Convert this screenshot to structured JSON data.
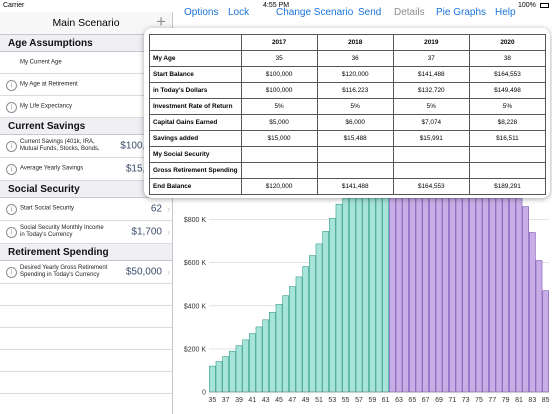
{
  "status": {
    "carrier": "Carrier",
    "time": "4:55 PM",
    "battery": "100%"
  },
  "sidebar": {
    "title": "Main Scenario",
    "add_label": "+",
    "sections": [
      {
        "title": "Age Assumptions",
        "rows": [
          {
            "label": "My Current Age",
            "value": "35",
            "info": false
          },
          {
            "label": "My Age at Retirement",
            "value": "62",
            "info": true
          },
          {
            "label": "My Life Expectancy",
            "value": "85",
            "info": true
          }
        ]
      },
      {
        "title": "Current Savings",
        "rows": [
          {
            "label": "Current Savings (401k, IRA, Mutual Funds, Stocks, Bonds,",
            "value": "$100,000",
            "info": true
          },
          {
            "label": "Average Yearly Savings",
            "value": "$15,000",
            "info": true
          }
        ]
      },
      {
        "title": "Social Security",
        "rows": [
          {
            "label": "Start Social Security",
            "value": "62",
            "info": true
          },
          {
            "label": "Social Security Monthly Income in Today's Currency",
            "value": "$1,700",
            "info": true
          }
        ]
      },
      {
        "title": "Retirement Spending",
        "rows": [
          {
            "label": "Desired Yearly Gross Retirement Spending in Today's Currency",
            "value": "$50,000",
            "info": true
          }
        ]
      }
    ]
  },
  "nav": {
    "options": "Options",
    "lock": "Lock",
    "change_scenario": "Change Scenario",
    "send": "Send",
    "details": "Details",
    "pie_graphs": "Pie Graphs",
    "help": "Help"
  },
  "table": {
    "years": [
      "2017",
      "2018",
      "2019",
      "2020"
    ],
    "rows": [
      {
        "label": "My Age",
        "values": [
          "35",
          "36",
          "37",
          "38"
        ]
      },
      {
        "label": "Start Balance",
        "values": [
          "$100,000",
          "$120,000",
          "$141,488",
          "$164,553"
        ]
      },
      {
        "label": "in Today's Dollars",
        "values": [
          "$100,000",
          "$116,223",
          "$132,720",
          "$149,498"
        ]
      },
      {
        "label": "Investment Rate of Return",
        "values": [
          "5%",
          "5%",
          "5%",
          "5%"
        ]
      },
      {
        "label": "Capital Gains Earned",
        "values": [
          "$5,000",
          "$6,000",
          "$7,074",
          "$8,228"
        ]
      },
      {
        "label": "Savings added",
        "values": [
          "$15,000",
          "$15,488",
          "$15,991",
          "$16,511"
        ]
      },
      {
        "label": "My Social Security",
        "values": [
          "",
          "",
          "",
          ""
        ]
      },
      {
        "label": "Gross Retirement Spending",
        "values": [
          "",
          "",
          "",
          ""
        ]
      },
      {
        "label": "End Balance",
        "values": [
          "$120,000",
          "$141,488",
          "$164,553",
          "$189,291"
        ]
      }
    ]
  },
  "chart_data": {
    "type": "bar",
    "x_tick_labels": [
      "35",
      "37",
      "39",
      "41",
      "43",
      "45",
      "47",
      "49",
      "51",
      "53",
      "55",
      "57",
      "59",
      "61",
      "63",
      "65",
      "67",
      "69",
      "71",
      "73",
      "75",
      "77",
      "79",
      "81",
      "83",
      "85"
    ],
    "y_tick_labels": [
      "0",
      "$200 K",
      "$400 K",
      "$600 K",
      "$800 K"
    ],
    "ylim": [
      0,
      900000
    ],
    "x": [
      35,
      36,
      37,
      38,
      39,
      40,
      41,
      42,
      43,
      44,
      45,
      46,
      47,
      48,
      49,
      50,
      51,
      52,
      53,
      54,
      55,
      56,
      57,
      58,
      59,
      60,
      61,
      62,
      63,
      64,
      65,
      66,
      67,
      68,
      69,
      70,
      71,
      72,
      73,
      74,
      75,
      76,
      77,
      78,
      79,
      80,
      81,
      82,
      83,
      84,
      85
    ],
    "values": [
      120000,
      141488,
      164553,
      189291,
      215000,
      242000,
      271000,
      302000,
      335000,
      370000,
      407000,
      447000,
      489000,
      534000,
      582000,
      633000,
      687000,
      745000,
      806000,
      871000,
      900000,
      900000,
      900000,
      900000,
      900000,
      900000,
      900000,
      900000,
      900000,
      900000,
      900000,
      900000,
      900000,
      900000,
      900000,
      900000,
      900000,
      900000,
      900000,
      900000,
      900000,
      900000,
      900000,
      900000,
      900000,
      900000,
      900000,
      860000,
      740000,
      610000,
      470000
    ],
    "retirement_age": 62,
    "colors": {
      "working": "#a6e3d8",
      "working_edge": "#3a9e8d",
      "retired": "#c8aee6",
      "retired_edge": "#7d59b6"
    }
  }
}
